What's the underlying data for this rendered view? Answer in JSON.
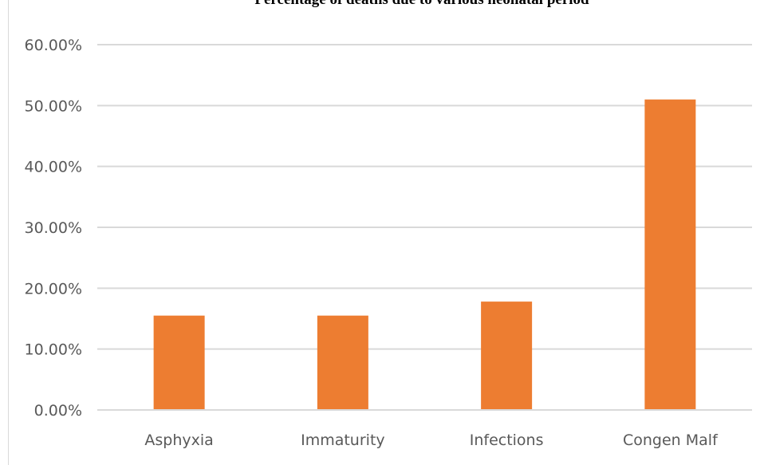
{
  "chart_data": {
    "type": "bar",
    "title": "Percentage of deaths due to various neonatal period",
    "categories": [
      "Asphyxia",
      "Immaturity",
      "Infections",
      "Congen Malf"
    ],
    "values": [
      15.5,
      15.5,
      17.8,
      51.0
    ],
    "ylim": [
      0,
      60
    ],
    "yticks": [
      0,
      10,
      20,
      30,
      40,
      50,
      60
    ],
    "ytick_labels": [
      "0.00%",
      "10.00%",
      "20.00%",
      "30.00%",
      "40.00%",
      "50.00%",
      "60.00%"
    ],
    "xlabel": "",
    "ylabel": "",
    "grid": true,
    "legend": "none",
    "colors": {
      "bar": "#ED7D31",
      "grid": "#d9d9d9",
      "tick_text": "#595959"
    }
  }
}
